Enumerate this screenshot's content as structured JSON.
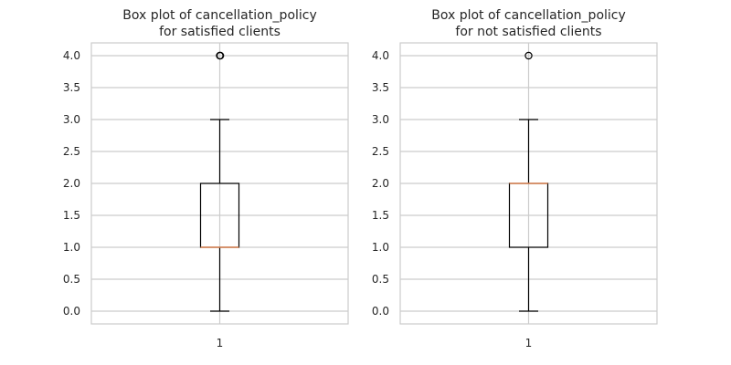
{
  "chart_data": [
    {
      "type": "box",
      "title_lines": [
        "Box plot of cancellation_policy",
        "for satisfied clients"
      ],
      "categories": [
        "1"
      ],
      "yticks": [
        "0.0",
        "0.5",
        "1.0",
        "1.5",
        "2.0",
        "2.5",
        "3.0",
        "3.5",
        "4.0"
      ],
      "ylim": [
        -0.2,
        4.2
      ],
      "grid": true,
      "box": {
        "whisker_low": 0.0,
        "q1": 1.0,
        "median": 1.0,
        "q3": 2.0,
        "whisker_high": 3.0,
        "fliers": [
          4.0,
          4.0
        ]
      },
      "colors": {
        "median": "#dd8452",
        "box": "#000000",
        "grid": "#cccccc"
      }
    },
    {
      "type": "box",
      "title_lines": [
        "Box plot of cancellation_policy",
        "for not satisfied clients"
      ],
      "categories": [
        "1"
      ],
      "yticks": [
        "0.0",
        "0.5",
        "1.0",
        "1.5",
        "2.0",
        "2.5",
        "3.0",
        "3.5",
        "4.0"
      ],
      "ylim": [
        -0.2,
        4.2
      ],
      "grid": true,
      "box": {
        "whisker_low": 0.0,
        "q1": 1.0,
        "median": 2.0,
        "q3": 2.0,
        "whisker_high": 3.0,
        "fliers": [
          4.0
        ]
      },
      "colors": {
        "median": "#dd8452",
        "box": "#000000",
        "grid": "#cccccc"
      }
    }
  ]
}
